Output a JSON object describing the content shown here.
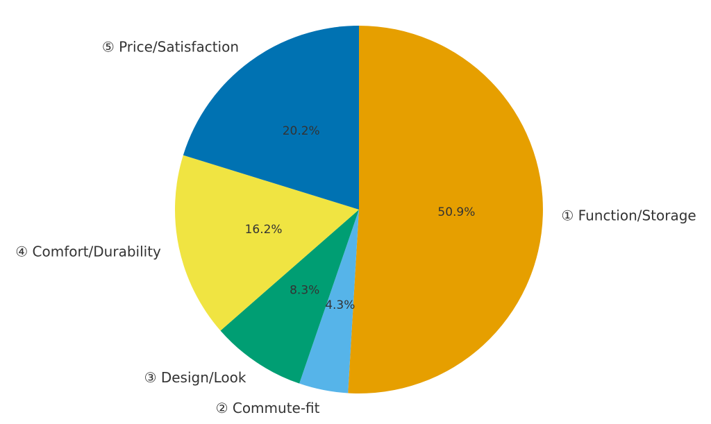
{
  "chart_data": {
    "type": "pie",
    "title": "",
    "categories": [
      "① Function/Storage",
      "② Commute-fit",
      "③ Design/Look",
      "④ Comfort/Durability",
      "⑤ Price/Satisfaction"
    ],
    "values": [
      50.9,
      4.3,
      8.3,
      16.2,
      20.2
    ],
    "value_labels": [
      "50.9%",
      "4.3%",
      "8.3%",
      "16.2%",
      "20.2%"
    ],
    "colors": [
      "#E69F00",
      "#56B4E9",
      "#009E73",
      "#F0E442",
      "#0072B2"
    ],
    "start": "top, clockwise",
    "legend": "none"
  }
}
